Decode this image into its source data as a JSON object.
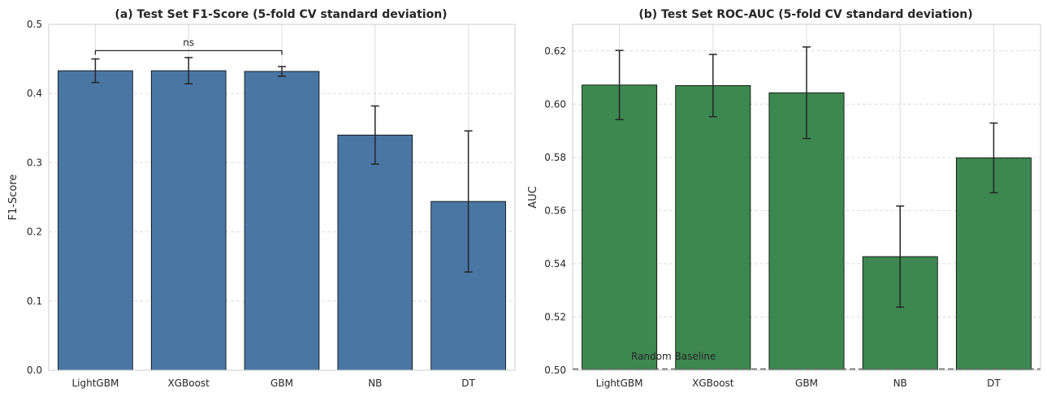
{
  "chart_data": [
    {
      "type": "bar",
      "title": "(a) Test Set F1-Score (5-fold CV standard deviation)",
      "xlabel": "",
      "ylabel": "F1-Score",
      "categories": [
        "LightGBM",
        "XGBoost",
        "GBM",
        "NB",
        "DT"
      ],
      "values": [
        0.433,
        0.433,
        0.432,
        0.34,
        0.244
      ],
      "errors": [
        0.017,
        0.019,
        0.007,
        0.042,
        0.102
      ],
      "ylim": [
        0,
        0.5
      ],
      "yticks": [
        0.0,
        0.1,
        0.2,
        0.3,
        0.4,
        0.5
      ],
      "ytick_labels": [
        "0.0",
        "0.1",
        "0.2",
        "0.3",
        "0.4",
        "0.5"
      ],
      "bar_color": "#4a76a3",
      "grid": true,
      "significance": {
        "from": 0,
        "to": 2,
        "label": "ns",
        "y": 0.462
      }
    },
    {
      "type": "bar",
      "title": "(b) Test Set ROC-AUC (5-fold CV standard deviation)",
      "xlabel": "",
      "ylabel": "AUC",
      "categories": [
        "LightGBM",
        "XGBoost",
        "GBM",
        "NB",
        "DT"
      ],
      "values": [
        0.6072,
        0.607,
        0.6043,
        0.5427,
        0.5798
      ],
      "errors": [
        0.013,
        0.0117,
        0.0172,
        0.019,
        0.0131
      ],
      "ylim": [
        0.5,
        0.63
      ],
      "yticks": [
        0.5,
        0.52,
        0.54,
        0.56,
        0.58,
        0.6,
        0.62
      ],
      "ytick_labels": [
        "0.50",
        "0.52",
        "0.54",
        "0.56",
        "0.58",
        "0.60",
        "0.62"
      ],
      "bar_color": "#3d8751",
      "grid": true,
      "baseline": {
        "value": 0.5,
        "label": "Random Baseline"
      }
    }
  ]
}
